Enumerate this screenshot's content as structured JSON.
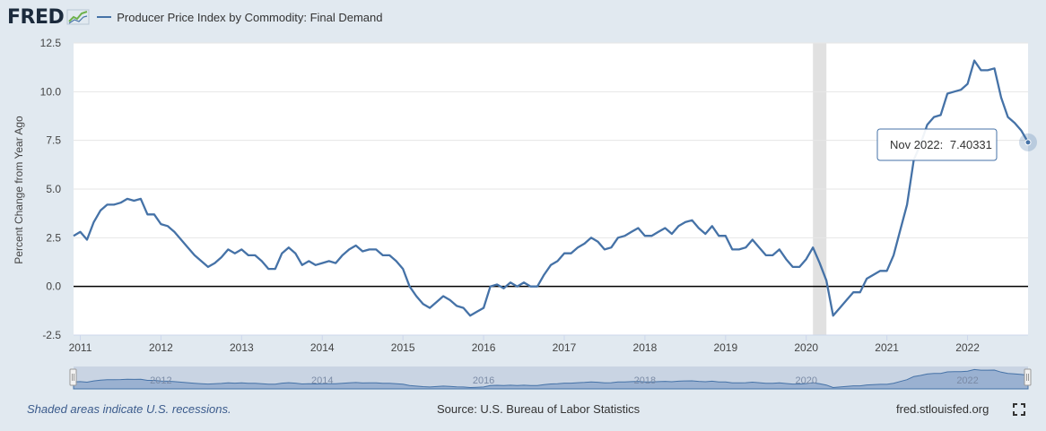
{
  "header": {
    "logo_text": "FRED",
    "series_title": "Producer Price Index by Commodity: Final Demand"
  },
  "footer": {
    "recession_note": "Shaded areas indicate U.S. recessions.",
    "source": "Source: U.S. Bureau of Labor Statistics",
    "site": "fred.stlouisfed.org"
  },
  "tooltip": {
    "label": "Nov 2022:",
    "value": "7.40331"
  },
  "colors": {
    "line": "#4572a7",
    "background": "#e1e9f0",
    "plot": "#ffffff",
    "recession": "#e1e1e1",
    "zero_line": "#000000"
  },
  "chart_data": {
    "type": "line",
    "title": "Producer Price Index by Commodity: Final Demand",
    "ylabel": "Percent Change from Year Ago",
    "ylim": [
      -2.5,
      12.5
    ],
    "yticks": [
      "12.5",
      "10.0",
      "7.5",
      "5.0",
      "2.5",
      "0.0",
      "-2.5"
    ],
    "xticks": [
      "2011",
      "2012",
      "2013",
      "2014",
      "2015",
      "2016",
      "2017",
      "2018",
      "2019",
      "2020",
      "2021",
      "2022"
    ],
    "navigator_labels": [
      "2012",
      "2014",
      "2016",
      "2018",
      "2020",
      "2022"
    ],
    "recessions": [
      [
        "2020-02",
        "2020-04"
      ]
    ],
    "grid": true,
    "series": [
      {
        "name": "Producer Price Index by Commodity: Final Demand",
        "x_start": "2010-12",
        "frequency": "monthly",
        "values": [
          2.6,
          2.8,
          2.4,
          3.3,
          3.9,
          4.2,
          4.2,
          4.3,
          4.5,
          4.4,
          4.5,
          3.7,
          3.7,
          3.2,
          3.1,
          2.8,
          2.4,
          2.0,
          1.6,
          1.3,
          1.0,
          1.2,
          1.5,
          1.9,
          1.7,
          1.9,
          1.6,
          1.6,
          1.3,
          0.9,
          0.9,
          1.7,
          2.0,
          1.7,
          1.1,
          1.3,
          1.1,
          1.2,
          1.3,
          1.2,
          1.6,
          1.9,
          2.1,
          1.8,
          1.9,
          1.9,
          1.6,
          1.6,
          1.3,
          0.9,
          0.0,
          -0.5,
          -0.9,
          -1.1,
          -0.8,
          -0.5,
          -0.7,
          -1.0,
          -1.1,
          -1.5,
          -1.3,
          -1.1,
          0.0,
          0.1,
          -0.1,
          0.2,
          0.0,
          0.2,
          0.0,
          0.0,
          0.6,
          1.1,
          1.3,
          1.7,
          1.7,
          2.0,
          2.2,
          2.5,
          2.3,
          1.9,
          2.0,
          2.5,
          2.6,
          2.8,
          3.0,
          2.6,
          2.6,
          2.8,
          3.0,
          2.7,
          3.1,
          3.3,
          3.4,
          3.0,
          2.7,
          3.1,
          2.6,
          2.6,
          1.9,
          1.9,
          2.0,
          2.4,
          2.0,
          1.6,
          1.6,
          1.9,
          1.4,
          1.0,
          1.0,
          1.4,
          2.0,
          1.2,
          0.3,
          -1.5,
          -1.1,
          -0.7,
          -0.3,
          -0.3,
          0.4,
          0.6,
          0.8,
          0.8,
          1.6,
          2.9,
          4.2,
          6.5,
          7.3,
          8.3,
          8.7,
          8.8,
          9.9,
          10.0,
          10.1,
          10.4,
          11.6,
          11.1,
          11.1,
          11.2,
          9.7,
          8.7,
          8.4,
          8.0,
          7.4
        ]
      }
    ]
  }
}
